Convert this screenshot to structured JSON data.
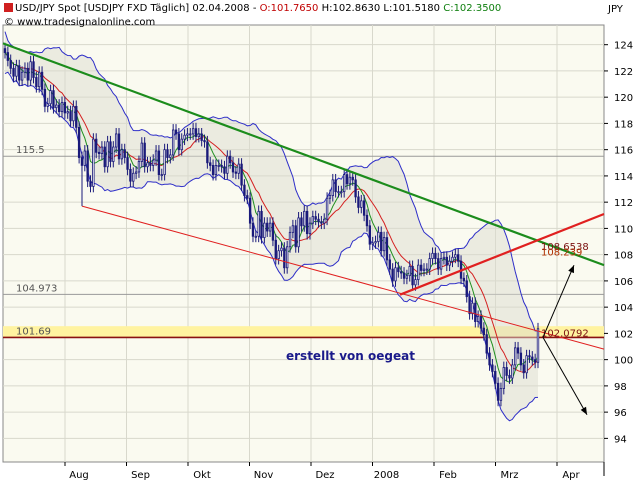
{
  "header": {
    "symbol": "USD/JPY Spot [USDJPY FXD  Täglich] 02.04.2008 - ",
    "open": "O:101.7650",
    "high": "H:102.8630",
    "low": "L:101.5180",
    "close": "C:102.3500",
    "copyright": "© www.tradesignalonline.com",
    "unit": "JPY"
  },
  "annotation": "erstellt von oegeat",
  "colors": {
    "background": "#ffffff",
    "plot": "#fafaf0",
    "grid": "#d8d8cc",
    "candle": "#1a1a7a",
    "band": "#2e2ec8",
    "bandFill": "#dcdcd0",
    "ma_fast": "#1f8f1f",
    "ma_slow": "#d42020",
    "trend_upper": "#1c8c1c",
    "trend_red": "#e02020",
    "zone": "#fff3a0",
    "hline_dark": "#8a1010",
    "hline_grey": "#999999",
    "arrow": "#000000",
    "priceText": "#c00000"
  },
  "chart_data": {
    "type": "candlestick",
    "y_unit": "JPY",
    "ylim": [
      92.2,
      125.5
    ],
    "y_ticks": [
      94,
      96,
      98,
      100,
      102,
      104,
      106,
      108,
      110,
      112,
      114,
      116,
      118,
      120,
      122,
      124
    ],
    "x_labels": [
      "Aug",
      "Sep",
      "Okt",
      "Nov",
      "Dez",
      "2008",
      "Feb",
      "Mrz",
      "Apr"
    ],
    "horizontal_levels": [
      {
        "label": "115.5",
        "value": 115.5,
        "style": "grey"
      },
      {
        "label": "104.973",
        "value": 104.97,
        "style": "grey"
      },
      {
        "label": "101.69",
        "value": 101.69,
        "style": "dark"
      }
    ],
    "zone": {
      "from": 101.69,
      "to": 102.55
    },
    "price_labels": [
      {
        "label": "108.6538",
        "value": 108.65
      },
      {
        "label": "108.239",
        "value": 108.24
      },
      {
        "label": "102.0792",
        "value": 102.08
      }
    ],
    "closes": [
      123.4,
      122.8,
      122.2,
      121.6,
      122.4,
      121.3,
      121.9,
      122.2,
      121.3,
      122.7,
      121.5,
      120.8,
      121.9,
      120.6,
      119.3,
      119.5,
      120.5,
      119.2,
      119.4,
      118.9,
      119.6,
      118.8,
      118.9,
      118.2,
      119.3,
      117.7,
      115.4,
      114.8,
      115.9,
      113.6,
      113.2,
      116.8,
      115.8,
      115.7,
      116.2,
      114.7,
      116.6,
      115.1,
      116.2,
      117.2,
      115.3,
      116.0,
      115.4,
      114.5,
      113.6,
      114.2,
      114.3,
      115.1,
      116.5,
      114.7,
      115.0,
      114.8,
      115.2,
      115.9,
      114.1,
      114.1,
      116.0,
      115.4,
      115.6,
      117.5,
      117.2,
      116.0,
      116.8,
      117.1,
      117.2,
      117.2,
      117.6,
      117.0,
      117.2,
      116.7,
      116.6,
      115.0,
      114.8,
      114.1,
      114.8,
      114.8,
      114.7,
      114.2,
      115.5,
      115.0,
      114.3,
      114.2,
      114.9,
      113.3,
      112.5,
      112.3,
      110.4,
      109.4,
      109.4,
      111.3,
      109.3,
      110.4,
      109.8,
      110.4,
      109.1,
      107.7,
      108.3,
      108.5,
      107.0,
      108.6,
      109.7,
      110.2,
      108.6,
      110.8,
      110.2,
      111.3,
      109.6,
      110.4,
      110.9,
      110.7,
      110.5,
      110.4,
      110.7,
      112.3,
      112.5,
      113.7,
      112.8,
      112.8,
      112.8,
      114.1,
      113.4,
      113.9,
      113.7,
      112.4,
      111.6,
      112.1,
      111.0,
      110.2,
      108.8,
      108.9,
      109.0,
      109.7,
      108.3,
      109.3,
      107.6,
      106.9,
      106.0,
      107.0,
      106.7,
      106.6,
      106.2,
      106.4,
      107.1,
      105.7,
      106.1,
      107.2,
      106.8,
      106.9,
      106.9,
      107.7,
      108.1,
      107.7,
      106.9,
      107.7,
      107.8,
      107.2,
      107.5,
      107.8,
      108.0,
      107.5,
      106.2,
      106.0,
      104.8,
      103.5,
      104.3,
      102.9,
      103.3,
      102.4,
      101.9,
      100.5,
      99.6,
      99.1,
      98.2,
      96.9,
      97.8,
      99.4,
      98.8,
      98.6,
      99.6,
      100.9,
      100.5,
      99.6,
      99.0,
      100.3,
      100.2,
      100.0,
      99.8,
      102.35
    ],
    "upper_band_dates": "Bollinger bands drawn as envelope around closes",
    "trend_lines": [
      {
        "name": "",
        "from": 124.1,
        "to": 107.2
      },
      {
        "name": "",
        "from": 111.7,
        "to": 100.8
      },
      {
        "name": "",
        "from": 104.95,
        "to": 111.1
      }
    ]
  }
}
